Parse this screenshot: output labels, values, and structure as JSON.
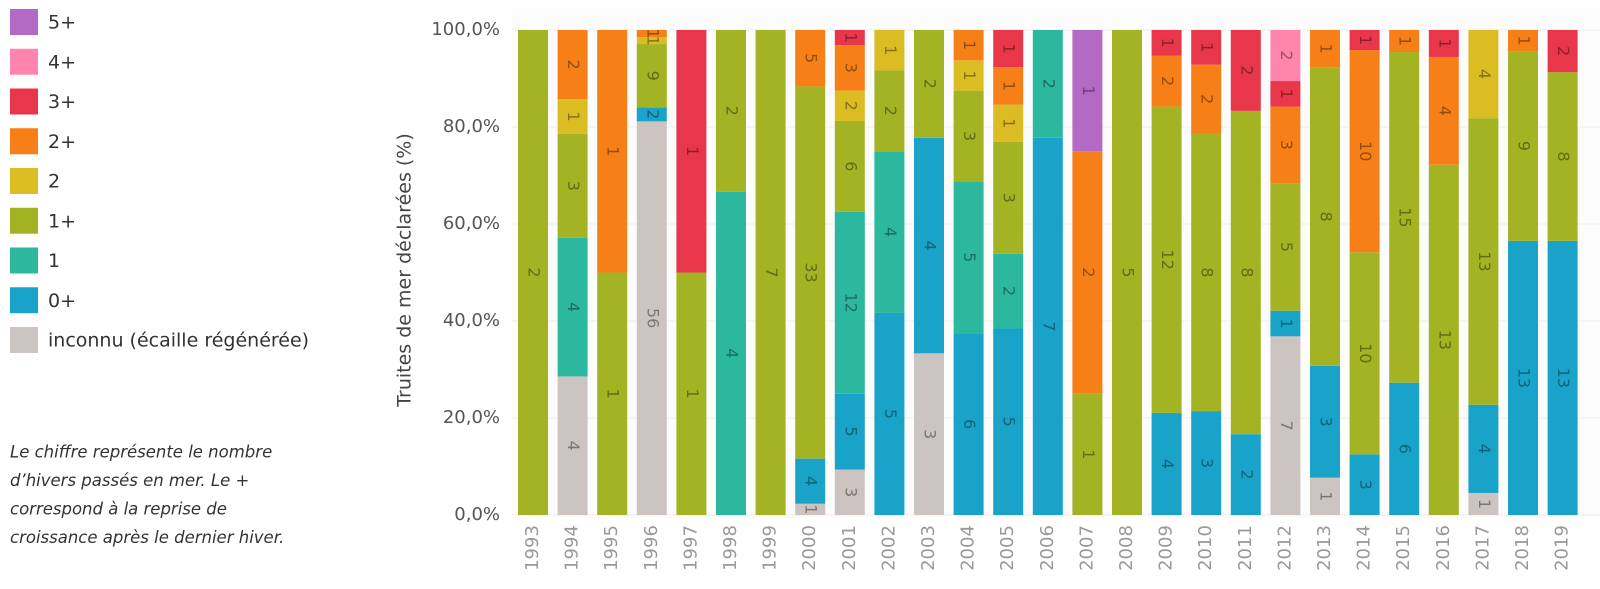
{
  "chart_data": {
    "type": "stacked_bar_percent",
    "y_label": "Truites de mer déclarées (%)",
    "note": [
      "Le  chiffre représente le nombre",
      "d’hivers passés en mer. Le +",
      "correspond à la reprise de",
      "croissance après le dernier hiver."
    ],
    "categories": [
      "1993",
      "1994",
      "1995",
      "1996",
      "1997",
      "1998",
      "1999",
      "2000",
      "2001",
      "2002",
      "2003",
      "2004",
      "2005",
      "2006",
      "2007",
      "2008",
      "2009",
      "2010",
      "2011",
      "2012",
      "2013",
      "2014",
      "2015",
      "2016",
      "2017",
      "2018",
      "2019"
    ],
    "series": [
      {
        "name": "inconnu (écaille régénérée)",
        "color": "#ccc4c0",
        "values": [
          null,
          4,
          null,
          56,
          null,
          null,
          null,
          1,
          3,
          null,
          3,
          null,
          null,
          null,
          null,
          null,
          null,
          null,
          null,
          7,
          1,
          null,
          null,
          null,
          1,
          null,
          null
        ]
      },
      {
        "name": "0+",
        "color": "#1aa3c8",
        "values": [
          null,
          null,
          null,
          2,
          null,
          null,
          null,
          4,
          5,
          5,
          4,
          6,
          5,
          7,
          null,
          null,
          4,
          3,
          2,
          1,
          3,
          3,
          6,
          null,
          4,
          13,
          13
        ]
      },
      {
        "name": "1",
        "color": "#2cb89e",
        "values": [
          null,
          4,
          null,
          null,
          null,
          4,
          null,
          null,
          12,
          4,
          null,
          5,
          2,
          2,
          null,
          null,
          null,
          null,
          null,
          null,
          null,
          null,
          null,
          null,
          null,
          null,
          null
        ]
      },
      {
        "name": "1+",
        "color": "#a3b324",
        "values": [
          2,
          3,
          1,
          9,
          1,
          2,
          7,
          33,
          6,
          2,
          2,
          3,
          3,
          null,
          1,
          5,
          12,
          8,
          8,
          5,
          8,
          10,
          15,
          13,
          13,
          9,
          8
        ]
      },
      {
        "name": "2",
        "color": "#dcbc23",
        "values": [
          null,
          1,
          null,
          1,
          null,
          null,
          null,
          null,
          2,
          1,
          null,
          1,
          1,
          null,
          null,
          null,
          null,
          null,
          null,
          null,
          null,
          null,
          null,
          null,
          4,
          null,
          null
        ]
      },
      {
        "name": "2+",
        "color": "#f77f17",
        "values": [
          null,
          2,
          1,
          1,
          null,
          null,
          null,
          5,
          3,
          null,
          null,
          1,
          1,
          null,
          2,
          null,
          2,
          2,
          null,
          3,
          1,
          10,
          1,
          4,
          null,
          1,
          null
        ]
      },
      {
        "name": "3+",
        "color": "#e8364a",
        "values": [
          null,
          null,
          null,
          null,
          1,
          null,
          null,
          null,
          1,
          null,
          null,
          null,
          1,
          null,
          null,
          null,
          1,
          1,
          2,
          1,
          null,
          1,
          null,
          1,
          null,
          null,
          2
        ]
      },
      {
        "name": "4+",
        "color": "#ff85ad",
        "values": [
          null,
          null,
          null,
          null,
          null,
          null,
          null,
          null,
          null,
          null,
          null,
          null,
          null,
          null,
          null,
          null,
          null,
          null,
          null,
          2,
          null,
          null,
          null,
          null,
          null,
          null,
          null
        ]
      },
      {
        "name": "5+",
        "color": "#b36ac4",
        "values": [
          null,
          null,
          null,
          null,
          null,
          null,
          null,
          null,
          null,
          null,
          null,
          null,
          null,
          null,
          1,
          null,
          null,
          null,
          null,
          null,
          null,
          null,
          null,
          null,
          null,
          null,
          null
        ]
      }
    ],
    "ylim": [
      0,
      100
    ],
    "yticks": [
      {
        "value": 0,
        "label": "0,0%"
      },
      {
        "value": 20,
        "label": "20,0%"
      },
      {
        "value": 40,
        "label": "40,0%"
      },
      {
        "value": 60,
        "label": "60,0%"
      },
      {
        "value": 80,
        "label": "80,0%"
      },
      {
        "value": 100,
        "label": "100,0%"
      }
    ],
    "grid": true
  }
}
